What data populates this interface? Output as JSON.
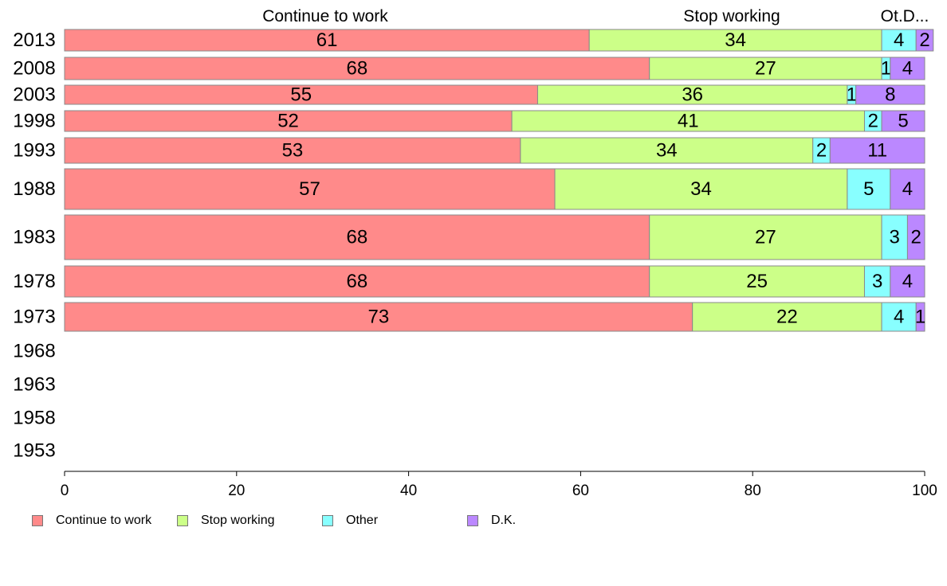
{
  "chart_data": {
    "type": "bar",
    "orientation": "horizontal",
    "stacked": true,
    "categories": [
      "2013",
      "2008",
      "2003",
      "1998",
      "1993",
      "1988",
      "1983",
      "1978",
      "1973",
      "1968",
      "1963",
      "1958",
      "1953"
    ],
    "series": [
      {
        "name": "Continue to work",
        "color": "#FF8A8A",
        "values": [
          61,
          68,
          55,
          52,
          53,
          57,
          68,
          68,
          73,
          null,
          null,
          null,
          null
        ]
      },
      {
        "name": "Stop working",
        "color": "#CCFF88",
        "values": [
          34,
          27,
          36,
          41,
          34,
          34,
          27,
          25,
          22,
          null,
          null,
          null,
          null
        ]
      },
      {
        "name": "Other",
        "color": "#88FFFF",
        "values": [
          4,
          1,
          1,
          2,
          2,
          5,
          3,
          3,
          4,
          null,
          null,
          null,
          null
        ]
      },
      {
        "name": "D.K.",
        "color": "#BB88FF",
        "values": [
          2,
          4,
          8,
          5,
          11,
          4,
          2,
          4,
          1,
          null,
          null,
          null,
          null
        ]
      }
    ],
    "column_headers": [
      "Continue to work",
      "Stop working",
      "Ot.D..."
    ],
    "xlim": [
      0,
      100
    ],
    "xticks": [
      "0",
      "20",
      "40",
      "60",
      "80",
      "100"
    ],
    "legend_position": "bottom-left",
    "grid": false
  }
}
